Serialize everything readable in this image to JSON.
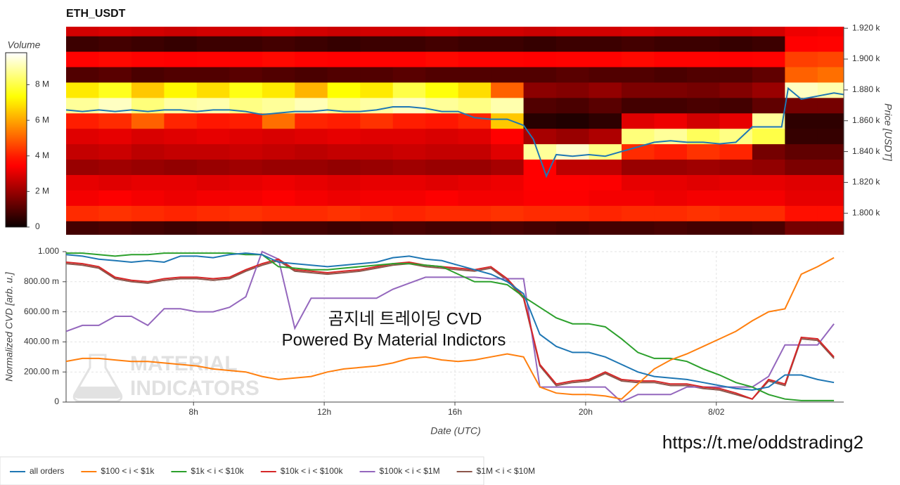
{
  "chart_data": [
    {
      "type": "heatmap",
      "title": "ETH_USDT",
      "ylabel": "Price [USDT]",
      "zlabel": "Volume",
      "xlim": [
        4.1,
        27.9
      ],
      "ylim": [
        1786,
        1921
      ],
      "yticks": [
        {
          "value": 1800,
          "label": "1.800 k"
        },
        {
          "value": 1820,
          "label": "1.820 k"
        },
        {
          "value": 1840,
          "label": "1.840 k"
        },
        {
          "value": 1860,
          "label": "1.860 k"
        },
        {
          "value": 1880,
          "label": "1.880 k"
        },
        {
          "value": 1900,
          "label": "1.900 k"
        },
        {
          "value": 1920,
          "label": "1.920 k"
        }
      ],
      "zlim": [
        0,
        9800000.0
      ],
      "zticks": [
        0,
        {
          "value": 2000000.0,
          "label": "2 M"
        },
        {
          "value": 4000000.0,
          "label": "4 M"
        },
        {
          "value": 6000000.0,
          "label": "6 M"
        },
        {
          "value": 8000000.0,
          "label": "8 M"
        }
      ],
      "xbins": [
        4.1,
        5.1,
        6.1,
        7.1,
        8.1,
        9.1,
        10.1,
        11.1,
        12.1,
        13.1,
        14.1,
        15.1,
        16.1,
        17.1,
        18.1,
        19.1,
        20.1,
        21.1,
        22.1,
        23.1,
        24.1,
        25.1,
        26.1,
        27.1,
        27.9
      ],
      "ybins": [
        1786,
        1795,
        1805,
        1815,
        1825,
        1835,
        1845,
        1855,
        1865,
        1875,
        1885,
        1895,
        1905,
        1915,
        1921
      ],
      "z": [
        [
          800000.0,
          900000.0,
          800000.0,
          700000.0,
          800000.0,
          900000.0,
          800000.0,
          800000.0,
          700000.0,
          800000.0,
          900000.0,
          800000.0,
          800000.0,
          900000.0,
          800000.0,
          700000.0,
          800000.0,
          800000.0,
          900000.0,
          800000.0,
          800000.0,
          900000.0,
          1500000.0,
          1500000.0
        ],
        [
          4200000.0,
          4300000.0,
          4200000.0,
          4100000.0,
          4200000.0,
          4300000.0,
          4200000.0,
          4200000.0,
          4300000.0,
          4200000.0,
          4100000.0,
          4200000.0,
          4200000.0,
          4300000.0,
          4200000.0,
          4200000.0,
          4100000.0,
          4200000.0,
          4200000.0,
          4300000.0,
          4200000.0,
          4200000.0,
          3800000.0,
          3800000.0
        ],
        [
          3300000.0,
          3400000.0,
          3300000.0,
          3200000.0,
          3300000.0,
          3300000.0,
          3400000.0,
          3300000.0,
          3200000.0,
          3300000.0,
          3300000.0,
          3400000.0,
          3300000.0,
          3300000.0,
          3400000.0,
          3400000.0,
          3300000.0,
          3300000.0,
          3200000.0,
          3300000.0,
          3300000.0,
          3300000.0,
          3100000.0,
          3100000.0
        ],
        [
          3100000.0,
          3000000.0,
          3100000.0,
          3100000.0,
          3000000.0,
          3100000.0,
          3200000.0,
          3100000.0,
          3000000.0,
          3100000.0,
          3100000.0,
          3000000.0,
          3100000.0,
          3200000.0,
          3500000.0,
          3500000.0,
          3400000.0,
          3100000.0,
          3100000.0,
          3000000.0,
          3100000.0,
          3100000.0,
          3000000.0,
          3000000.0
        ],
        [
          2000000.0,
          2100000.0,
          2000000.0,
          1900000.0,
          2000000.0,
          2100000.0,
          2000000.0,
          2000000.0,
          1900000.0,
          2000000.0,
          2100000.0,
          2000000.0,
          2000000.0,
          2200000.0,
          3500000.0,
          2500000.0,
          2500000.0,
          2000000.0,
          2000000.0,
          2100000.0,
          2000000.0,
          1900000.0,
          1600000.0,
          1600000.0
        ],
        [
          2600000.0,
          2700000.0,
          2500000.0,
          2600000.0,
          2600000.0,
          2700000.0,
          2600000.0,
          2500000.0,
          2600000.0,
          2600000.0,
          2700000.0,
          2600000.0,
          2600000.0,
          3000000.0,
          8800000.0,
          9300000.0,
          8600000.0,
          4200000.0,
          4000000.0,
          4300000.0,
          4100000.0,
          1500000.0,
          1200000.0,
          1200000.0
        ],
        [
          3000000.0,
          3100000.0,
          2900000.0,
          3000000.0,
          3100000.0,
          3000000.0,
          2900000.0,
          3000000.0,
          3100000.0,
          3000000.0,
          3000000.0,
          2900000.0,
          3000000.0,
          3500000.0,
          2200000.0,
          2000000.0,
          2300000.0,
          8500000.0,
          8800000.0,
          8200000.0,
          8600000.0,
          8000000.0,
          600000.0,
          600000.0
        ],
        [
          4000000.0,
          4200000.0,
          5000000.0,
          4100000.0,
          3900000.0,
          4000000.0,
          5200000.0,
          4100000.0,
          4000000.0,
          4300000.0,
          4000000.0,
          3900000.0,
          4100000.0,
          6500000.0,
          400000.0,
          300000.0,
          500000.0,
          3000000.0,
          3200000.0,
          2800000.0,
          3100000.0,
          8800000.0,
          500000.0,
          500000.0
        ],
        [
          8800000.0,
          9200000.0,
          8500000.0,
          8900000.0,
          9000000.0,
          8600000.0,
          8800000.0,
          9100000.0,
          8700000.0,
          8900000.0,
          9200000.0,
          8800000.0,
          8600000.0,
          9000000.0,
          1000000.0,
          900000.0,
          1100000.0,
          800000.0,
          800000.0,
          900000.0,
          800000.0,
          1200000.0,
          1500000.0,
          1500000.0
        ],
        [
          7000000.0,
          7600000.0,
          6500000.0,
          7200000.0,
          6800000.0,
          7500000.0,
          7000000.0,
          6200000.0,
          7300000.0,
          7000000.0,
          8000000.0,
          7400000.0,
          6800000.0,
          5000000.0,
          1800000.0,
          1700000.0,
          1900000.0,
          1600000.0,
          1600000.0,
          1500000.0,
          1700000.0,
          2000000.0,
          9200000.0,
          9000000.0
        ],
        [
          1000000.0,
          1100000.0,
          900000.0,
          1000000.0,
          1000000.0,
          1100000.0,
          1000000.0,
          900000.0,
          1000000.0,
          1000000.0,
          1100000.0,
          1000000.0,
          1000000.0,
          1000000.0,
          1000000.0,
          1100000.0,
          1000000.0,
          1000000.0,
          900000.0,
          1000000.0,
          1000000.0,
          1200000.0,
          5000000.0,
          5200000.0
        ],
        [
          3600000.0,
          3700000.0,
          3600000.0,
          3500000.0,
          3600000.0,
          3600000.0,
          3700000.0,
          3600000.0,
          3500000.0,
          3600000.0,
          3600000.0,
          3700000.0,
          3600000.0,
          3600000.0,
          3500000.0,
          3600000.0,
          3600000.0,
          3700000.0,
          3600000.0,
          3600000.0,
          3500000.0,
          3600000.0,
          4500000.0,
          4600000.0
        ],
        [
          700000.0,
          800000.0,
          700000.0,
          600000.0,
          700000.0,
          700000.0,
          800000.0,
          700000.0,
          600000.0,
          700000.0,
          700000.0,
          800000.0,
          700000.0,
          700000.0,
          600000.0,
          700000.0,
          700000.0,
          800000.0,
          700000.0,
          700000.0,
          600000.0,
          700000.0,
          3500000.0,
          3600000.0
        ],
        [
          2800000.0,
          2900000.0,
          2800000.0,
          2700000.0,
          2800000.0,
          2800000.0,
          2900000.0,
          2800000.0,
          2700000.0,
          2800000.0,
          2800000.0,
          2900000.0,
          2800000.0,
          2800000.0,
          2700000.0,
          2800000.0,
          2800000.0,
          2900000.0,
          2800000.0,
          2800000.0,
          2700000.0,
          2800000.0,
          3200000.0,
          3300000.0
        ]
      ],
      "line": {
        "color": "#1f77b4",
        "x": [
          4.1,
          4.6,
          5.1,
          5.6,
          6.1,
          6.6,
          7.1,
          7.6,
          8.1,
          8.6,
          9.1,
          9.6,
          10.1,
          10.6,
          11.1,
          11.6,
          12.1,
          12.6,
          13.1,
          13.6,
          14.1,
          14.6,
          15.1,
          15.6,
          16.1,
          16.6,
          17.1,
          17.6,
          18.1,
          18.4,
          18.6,
          18.8,
          19.1,
          19.6,
          20.1,
          20.6,
          21.1,
          21.6,
          22.1,
          22.6,
          23.1,
          23.6,
          24.1,
          24.6,
          25.1,
          25.6,
          26.0,
          26.2,
          26.6,
          27.1,
          27.6,
          27.9
        ],
        "values": [
          1867,
          1866,
          1867,
          1866,
          1867,
          1866,
          1867,
          1867,
          1866,
          1867,
          1867,
          1866,
          1864,
          1865,
          1866,
          1866,
          1867,
          1866,
          1866,
          1867,
          1869,
          1869,
          1868,
          1866,
          1866,
          1862,
          1861,
          1861,
          1857,
          1848,
          1836,
          1824,
          1838,
          1837,
          1838,
          1837,
          1840,
          1843,
          1846,
          1847,
          1846,
          1846,
          1845,
          1846,
          1856,
          1856,
          1856,
          1881,
          1874,
          1876,
          1878,
          1877
        ]
      }
    },
    {
      "type": "line",
      "xlabel": "Date (UTC)",
      "ylabel": "Normalized CVD [arb. u.]",
      "grid": true,
      "legend": "bottom",
      "xlim": [
        4.1,
        27.9
      ],
      "ylim": [
        0,
        1
      ],
      "xticks": [
        {
          "value": 8,
          "label": "8h"
        },
        {
          "value": 12,
          "label": "12h"
        },
        {
          "value": 16,
          "label": "16h"
        },
        {
          "value": 20,
          "label": "20h"
        },
        {
          "value": 24,
          "label": "8/02"
        }
      ],
      "yticks": [
        0,
        {
          "value": 0.2,
          "label": "200.00 m"
        },
        {
          "value": 0.4,
          "label": "400.00 m"
        },
        {
          "value": 0.6,
          "label": "600.00 m"
        },
        {
          "value": 0.8,
          "label": "800.00 m"
        },
        {
          "value": 1,
          "label": "1.000"
        }
      ],
      "annotations": [
        "곰지네 트레이딩 CVD",
        "Powered By Material Indictors",
        "MATERIAL",
        "INDICATORS",
        "https://t.me/oddstrading2"
      ],
      "x": [
        4.1,
        4.6,
        5.1,
        5.6,
        6.1,
        6.6,
        7.1,
        7.6,
        8.1,
        8.6,
        9.1,
        9.6,
        10.1,
        10.6,
        11.1,
        11.6,
        12.1,
        12.6,
        13.1,
        13.6,
        14.1,
        14.6,
        15.1,
        15.6,
        16.1,
        16.6,
        17.1,
        17.6,
        18.1,
        18.6,
        19.1,
        19.6,
        20.1,
        20.6,
        21.1,
        21.6,
        22.1,
        22.6,
        23.1,
        23.6,
        24.1,
        24.6,
        25.1,
        25.6,
        26.1,
        26.6,
        27.1,
        27.6
      ],
      "series": [
        {
          "name": "all orders",
          "color": "#1f77b4",
          "values": [
            0.98,
            0.97,
            0.95,
            0.94,
            0.93,
            0.94,
            0.93,
            0.97,
            0.97,
            0.96,
            0.98,
            0.99,
            0.98,
            0.93,
            0.92,
            0.91,
            0.9,
            0.91,
            0.92,
            0.93,
            0.96,
            0.97,
            0.95,
            0.94,
            0.91,
            0.88,
            0.85,
            0.8,
            0.72,
            0.45,
            0.37,
            0.33,
            0.33,
            0.3,
            0.25,
            0.2,
            0.17,
            0.16,
            0.15,
            0.13,
            0.11,
            0.09,
            0.08,
            0.1,
            0.18,
            0.18,
            0.15,
            0.13
          ]
        },
        {
          "name": "$100 < i < $1k",
          "color": "#ff7f0e",
          "values": [
            0.27,
            0.29,
            0.29,
            0.28,
            0.27,
            0.27,
            0.26,
            0.25,
            0.24,
            0.22,
            0.21,
            0.2,
            0.17,
            0.15,
            0.16,
            0.17,
            0.2,
            0.22,
            0.23,
            0.24,
            0.26,
            0.29,
            0.3,
            0.28,
            0.27,
            0.28,
            0.3,
            0.32,
            0.3,
            0.1,
            0.06,
            0.05,
            0.05,
            0.04,
            0.02,
            0.12,
            0.22,
            0.28,
            0.32,
            0.37,
            0.42,
            0.47,
            0.54,
            0.6,
            0.62,
            0.85,
            0.9,
            0.96
          ]
        },
        {
          "name": "$1k < i < $10k",
          "color": "#2ca02c",
          "values": [
            0.99,
            0.99,
            0.98,
            0.97,
            0.98,
            0.98,
            0.99,
            0.99,
            0.99,
            0.99,
            0.99,
            0.98,
            0.98,
            0.9,
            0.89,
            0.88,
            0.88,
            0.89,
            0.9,
            0.91,
            0.92,
            0.92,
            0.91,
            0.9,
            0.85,
            0.8,
            0.8,
            0.78,
            0.7,
            0.63,
            0.56,
            0.52,
            0.52,
            0.5,
            0.42,
            0.33,
            0.29,
            0.29,
            0.27,
            0.22,
            0.18,
            0.13,
            0.1,
            0.05,
            0.02,
            0.01,
            0.01,
            0.01
          ]
        },
        {
          "name": "$10k < i < $100k",
          "color": "#d62728",
          "values": [
            0.93,
            0.92,
            0.9,
            0.83,
            0.81,
            0.8,
            0.82,
            0.83,
            0.83,
            0.82,
            0.83,
            0.88,
            0.92,
            0.95,
            0.88,
            0.87,
            0.86,
            0.87,
            0.88,
            0.9,
            0.92,
            0.93,
            0.91,
            0.9,
            0.89,
            0.88,
            0.9,
            0.82,
            0.7,
            0.25,
            0.12,
            0.14,
            0.15,
            0.2,
            0.15,
            0.14,
            0.14,
            0.12,
            0.12,
            0.1,
            0.09,
            0.06,
            0.02,
            0.15,
            0.12,
            0.43,
            0.42,
            0.3
          ]
        },
        {
          "name": "$100k < i < $1M",
          "color": "#9467bd",
          "values": [
            0.47,
            0.51,
            0.51,
            0.57,
            0.57,
            0.51,
            0.62,
            0.62,
            0.6,
            0.6,
            0.63,
            0.7,
            1.0,
            0.95,
            0.49,
            0.69,
            0.69,
            0.69,
            0.69,
            0.69,
            0.75,
            0.79,
            0.83,
            0.83,
            0.83,
            0.83,
            0.82,
            0.82,
            0.82,
            0.1,
            0.1,
            0.1,
            0.1,
            0.1,
            0.0,
            0.05,
            0.05,
            0.05,
            0.1,
            0.1,
            0.1,
            0.1,
            0.1,
            0.17,
            0.38,
            0.38,
            0.38,
            0.52
          ]
        },
        {
          "name": "$1M < i < $10M",
          "color": "#8c564b",
          "values": [
            0.92,
            0.91,
            0.89,
            0.82,
            0.8,
            0.79,
            0.81,
            0.82,
            0.82,
            0.81,
            0.82,
            0.87,
            0.91,
            0.94,
            0.87,
            0.86,
            0.85,
            0.86,
            0.87,
            0.89,
            0.91,
            0.92,
            0.9,
            0.89,
            0.88,
            0.87,
            0.89,
            0.81,
            0.69,
            0.24,
            0.11,
            0.13,
            0.14,
            0.19,
            0.14,
            0.13,
            0.13,
            0.11,
            0.11,
            0.09,
            0.08,
            0.05,
            0.02,
            0.14,
            0.11,
            0.42,
            0.41,
            0.29
          ]
        }
      ]
    }
  ]
}
